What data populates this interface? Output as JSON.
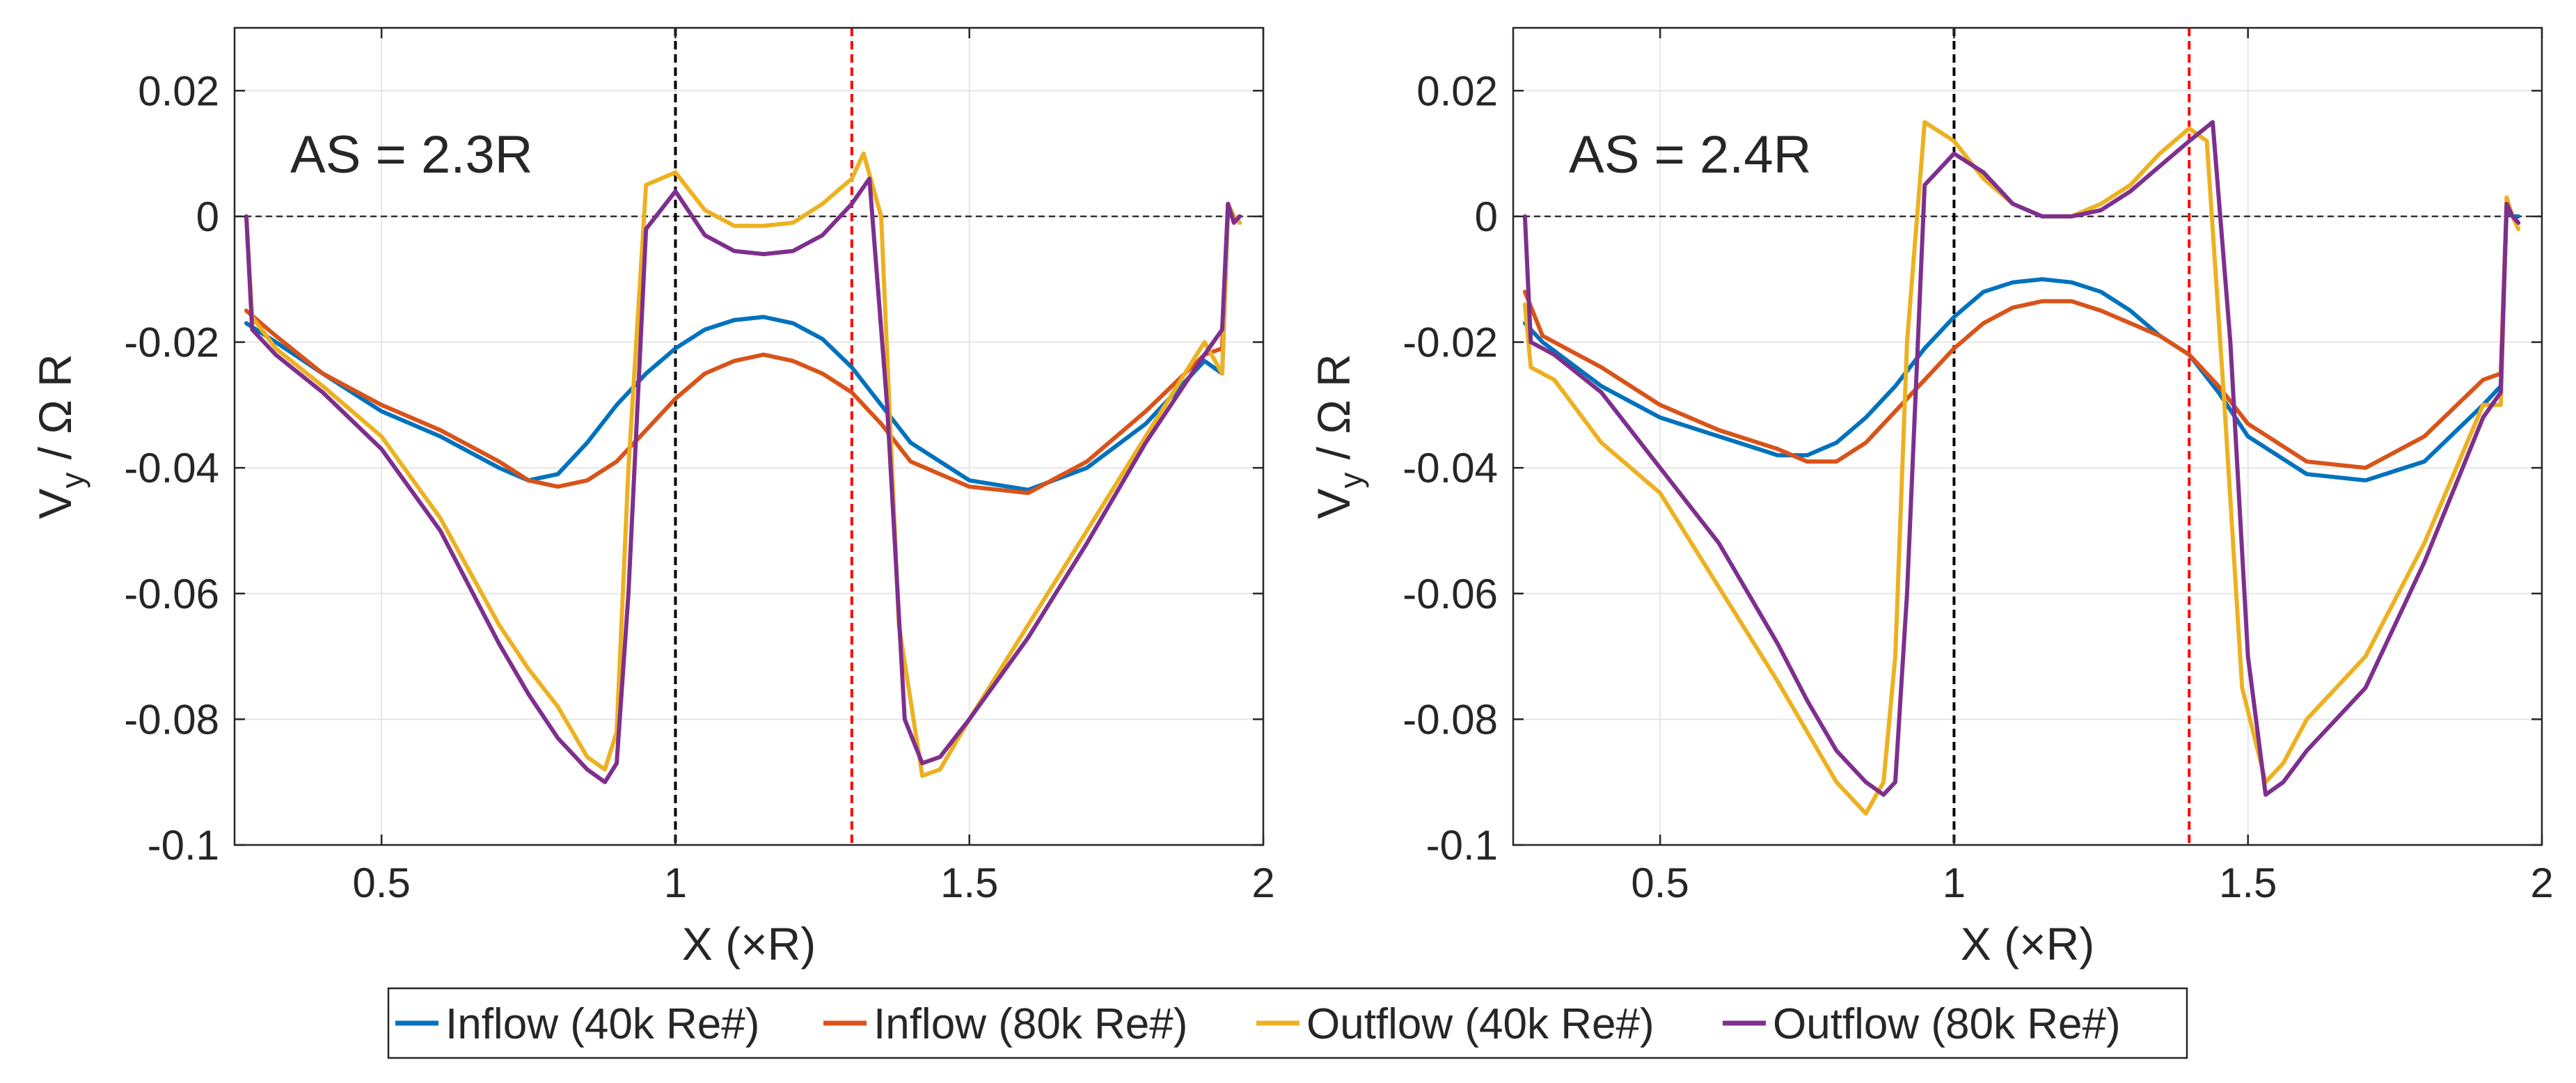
{
  "chart_data": [
    {
      "type": "line",
      "annotation": "AS = 2.3R",
      "xlabel": "X (×R)",
      "ylabel_main": "V",
      "ylabel_sub": "y",
      "ylabel_rest": " / Ω R",
      "xlim": [
        0.25,
        2.0
      ],
      "ylim": [
        -0.1,
        0.03
      ],
      "xticks": [
        {
          "v": 0.5,
          "label": "0.5"
        },
        {
          "v": 1,
          "label": "1"
        },
        {
          "v": 1.5,
          "label": "1.5"
        },
        {
          "v": 2,
          "label": "2"
        }
      ],
      "yticks": [
        {
          "v": 0.02,
          "label": "0.02"
        },
        {
          "v": 0,
          "label": "0"
        },
        {
          "v": -0.02,
          "label": "-0.02"
        },
        {
          "v": -0.04,
          "label": "-0.04"
        },
        {
          "v": -0.06,
          "label": "-0.06"
        },
        {
          "v": -0.08,
          "label": "-0.08"
        },
        {
          "v": -0.1,
          "label": "-0.1"
        }
      ],
      "grid": true,
      "vlines": [
        {
          "x": 1.0,
          "color": "#000000"
        },
        {
          "x": 1.3,
          "color": "#ff0000"
        }
      ],
      "hline": 0,
      "series": [
        {
          "name": "Inflow (40k Re#)",
          "color": "#0072bd",
          "x": [
            0.27,
            0.32,
            0.4,
            0.5,
            0.6,
            0.7,
            0.75,
            0.8,
            0.85,
            0.9,
            0.95,
            1.0,
            1.05,
            1.1,
            1.15,
            1.2,
            1.25,
            1.3,
            1.35,
            1.4,
            1.5,
            1.6,
            1.7,
            1.8,
            1.9,
            1.93,
            1.94,
            1.95,
            1.96
          ],
          "y": [
            -0.017,
            -0.02,
            -0.025,
            -0.031,
            -0.035,
            -0.04,
            -0.042,
            -0.041,
            -0.036,
            -0.03,
            -0.025,
            -0.021,
            -0.018,
            -0.0165,
            -0.016,
            -0.017,
            -0.0195,
            -0.024,
            -0.03,
            -0.036,
            -0.042,
            -0.0435,
            -0.04,
            -0.033,
            -0.023,
            -0.025,
            0.001,
            0.0,
            -0.001
          ]
        },
        {
          "name": "Inflow (80k Re#)",
          "color": "#d95319",
          "x": [
            0.27,
            0.32,
            0.4,
            0.5,
            0.6,
            0.7,
            0.75,
            0.8,
            0.85,
            0.9,
            0.95,
            1.0,
            1.05,
            1.1,
            1.15,
            1.2,
            1.25,
            1.3,
            1.35,
            1.4,
            1.5,
            1.6,
            1.7,
            1.8,
            1.9,
            1.93,
            1.94,
            1.95,
            1.96
          ],
          "y": [
            -0.015,
            -0.019,
            -0.025,
            -0.03,
            -0.034,
            -0.039,
            -0.042,
            -0.043,
            -0.042,
            -0.039,
            -0.034,
            -0.029,
            -0.025,
            -0.023,
            -0.022,
            -0.023,
            -0.025,
            -0.028,
            -0.033,
            -0.039,
            -0.043,
            -0.044,
            -0.039,
            -0.031,
            -0.022,
            -0.021,
            0.002,
            -0.001,
            0.0
          ]
        },
        {
          "name": "Outflow (40k Re#)",
          "color": "#edb120",
          "x": [
            0.27,
            0.28,
            0.32,
            0.4,
            0.5,
            0.6,
            0.7,
            0.75,
            0.8,
            0.85,
            0.88,
            0.9,
            0.92,
            0.95,
            1.0,
            1.05,
            1.1,
            1.15,
            1.2,
            1.25,
            1.3,
            1.32,
            1.35,
            1.38,
            1.42,
            1.45,
            1.5,
            1.6,
            1.7,
            1.8,
            1.9,
            1.93,
            1.94,
            1.95,
            1.96
          ],
          "y": [
            0.0,
            -0.016,
            -0.021,
            -0.027,
            -0.035,
            -0.048,
            -0.065,
            -0.072,
            -0.078,
            -0.086,
            -0.088,
            -0.082,
            -0.04,
            0.005,
            0.007,
            0.001,
            -0.0015,
            -0.0015,
            -0.001,
            0.002,
            0.006,
            0.01,
            0.0,
            -0.065,
            -0.089,
            -0.088,
            -0.08,
            -0.065,
            -0.05,
            -0.035,
            -0.02,
            -0.025,
            0.002,
            0.0,
            -0.001
          ]
        },
        {
          "name": "Outflow (80k Re#)",
          "color": "#7e2f8e",
          "x": [
            0.27,
            0.28,
            0.32,
            0.4,
            0.5,
            0.6,
            0.7,
            0.75,
            0.8,
            0.85,
            0.88,
            0.9,
            0.92,
            0.95,
            1.0,
            1.05,
            1.1,
            1.15,
            1.2,
            1.25,
            1.3,
            1.33,
            1.36,
            1.39,
            1.42,
            1.45,
            1.5,
            1.6,
            1.7,
            1.8,
            1.9,
            1.93,
            1.94,
            1.95,
            1.96
          ],
          "y": [
            0.0,
            -0.018,
            -0.022,
            -0.028,
            -0.037,
            -0.05,
            -0.068,
            -0.076,
            -0.083,
            -0.088,
            -0.09,
            -0.087,
            -0.06,
            -0.002,
            0.004,
            -0.003,
            -0.0055,
            -0.006,
            -0.0055,
            -0.003,
            0.002,
            0.006,
            -0.03,
            -0.08,
            -0.087,
            -0.086,
            -0.08,
            -0.067,
            -0.052,
            -0.036,
            -0.022,
            -0.018,
            0.002,
            -0.001,
            0.0
          ]
        }
      ]
    },
    {
      "type": "line",
      "annotation": "AS = 2.4R",
      "xlabel": "X (×R)",
      "ylabel_main": "V",
      "ylabel_sub": "y",
      "ylabel_rest": " / Ω R",
      "xlim": [
        0.25,
        2.0
      ],
      "ylim": [
        -0.1,
        0.03
      ],
      "xticks": [
        {
          "v": 0.5,
          "label": "0.5"
        },
        {
          "v": 1,
          "label": "1"
        },
        {
          "v": 1.5,
          "label": "1.5"
        },
        {
          "v": 2,
          "label": "2"
        }
      ],
      "yticks": [
        {
          "v": 0.02,
          "label": "0.02"
        },
        {
          "v": 0,
          "label": "0"
        },
        {
          "v": -0.02,
          "label": "-0.02"
        },
        {
          "v": -0.04,
          "label": "-0.04"
        },
        {
          "v": -0.06,
          "label": "-0.06"
        },
        {
          "v": -0.08,
          "label": "-0.08"
        },
        {
          "v": -0.1,
          "label": "-0.1"
        }
      ],
      "grid": true,
      "vlines": [
        {
          "x": 1.0,
          "color": "#000000"
        },
        {
          "x": 1.4,
          "color": "#ff0000"
        }
      ],
      "hline": 0,
      "series": [
        {
          "name": "Inflow (40k Re#)",
          "color": "#0072bd",
          "x": [
            0.27,
            0.3,
            0.4,
            0.5,
            0.6,
            0.7,
            0.75,
            0.8,
            0.85,
            0.9,
            0.95,
            1.0,
            1.05,
            1.1,
            1.15,
            1.2,
            1.25,
            1.3,
            1.35,
            1.4,
            1.45,
            1.5,
            1.6,
            1.7,
            1.8,
            1.9,
            1.93,
            1.94,
            1.95,
            1.96
          ],
          "y": [
            -0.017,
            -0.02,
            -0.027,
            -0.032,
            -0.035,
            -0.038,
            -0.038,
            -0.036,
            -0.032,
            -0.027,
            -0.021,
            -0.016,
            -0.012,
            -0.0105,
            -0.01,
            -0.0105,
            -0.012,
            -0.015,
            -0.019,
            -0.022,
            -0.028,
            -0.035,
            -0.041,
            -0.042,
            -0.039,
            -0.03,
            -0.027,
            0.001,
            0.0,
            0.0
          ]
        },
        {
          "name": "Inflow (80k Re#)",
          "color": "#d95319",
          "x": [
            0.27,
            0.3,
            0.4,
            0.5,
            0.6,
            0.7,
            0.75,
            0.8,
            0.85,
            0.9,
            0.95,
            1.0,
            1.05,
            1.1,
            1.15,
            1.2,
            1.25,
            1.3,
            1.35,
            1.4,
            1.45,
            1.5,
            1.6,
            1.7,
            1.8,
            1.9,
            1.93,
            1.94,
            1.95,
            1.96
          ],
          "y": [
            -0.012,
            -0.019,
            -0.024,
            -0.03,
            -0.034,
            -0.037,
            -0.039,
            -0.039,
            -0.036,
            -0.031,
            -0.026,
            -0.021,
            -0.017,
            -0.0145,
            -0.0135,
            -0.0135,
            -0.015,
            -0.017,
            -0.019,
            -0.022,
            -0.027,
            -0.033,
            -0.039,
            -0.04,
            -0.035,
            -0.026,
            -0.025,
            0.002,
            0.0,
            -0.001
          ]
        },
        {
          "name": "Outflow (40k Re#)",
          "color": "#edb120",
          "x": [
            0.27,
            0.28,
            0.32,
            0.4,
            0.5,
            0.6,
            0.7,
            0.75,
            0.8,
            0.85,
            0.88,
            0.9,
            0.92,
            0.95,
            1.0,
            1.05,
            1.1,
            1.15,
            1.2,
            1.25,
            1.3,
            1.35,
            1.4,
            1.43,
            1.46,
            1.49,
            1.53,
            1.56,
            1.6,
            1.7,
            1.8,
            1.9,
            1.93,
            1.94,
            1.95,
            1.96
          ],
          "y": [
            -0.014,
            -0.024,
            -0.026,
            -0.036,
            -0.044,
            -0.059,
            -0.074,
            -0.082,
            -0.09,
            -0.095,
            -0.09,
            -0.07,
            -0.02,
            0.015,
            0.012,
            0.006,
            0.002,
            0.0,
            0.0,
            0.002,
            0.005,
            0.01,
            0.014,
            0.012,
            -0.03,
            -0.075,
            -0.09,
            -0.087,
            -0.08,
            -0.07,
            -0.052,
            -0.03,
            -0.03,
            0.003,
            0.0,
            -0.002
          ]
        },
        {
          "name": "Outflow (80k Re#)",
          "color": "#7e2f8e",
          "x": [
            0.27,
            0.28,
            0.32,
            0.4,
            0.5,
            0.6,
            0.7,
            0.75,
            0.8,
            0.85,
            0.88,
            0.9,
            0.92,
            0.95,
            1.0,
            1.05,
            1.1,
            1.15,
            1.2,
            1.25,
            1.3,
            1.35,
            1.4,
            1.44,
            1.47,
            1.5,
            1.53,
            1.56,
            1.6,
            1.7,
            1.8,
            1.9,
            1.93,
            1.94,
            1.95,
            1.96
          ],
          "y": [
            0.0,
            -0.02,
            -0.022,
            -0.028,
            -0.04,
            -0.052,
            -0.068,
            -0.077,
            -0.085,
            -0.09,
            -0.092,
            -0.09,
            -0.06,
            0.005,
            0.01,
            0.007,
            0.002,
            0.0,
            0.0,
            0.001,
            0.004,
            0.008,
            0.012,
            0.015,
            -0.02,
            -0.07,
            -0.092,
            -0.09,
            -0.085,
            -0.075,
            -0.055,
            -0.032,
            -0.028,
            0.002,
            0.0,
            -0.001
          ]
        }
      ]
    }
  ],
  "legend": {
    "placement": "bottom-center",
    "items": [
      {
        "label": "Inflow (40k Re#)",
        "color": "#0072bd"
      },
      {
        "label": "Inflow (80k Re#)",
        "color": "#d95319"
      },
      {
        "label": "Outflow (40k Re#)",
        "color": "#edb120"
      },
      {
        "label": "Outflow (80k Re#)",
        "color": "#7e2f8e"
      }
    ]
  }
}
